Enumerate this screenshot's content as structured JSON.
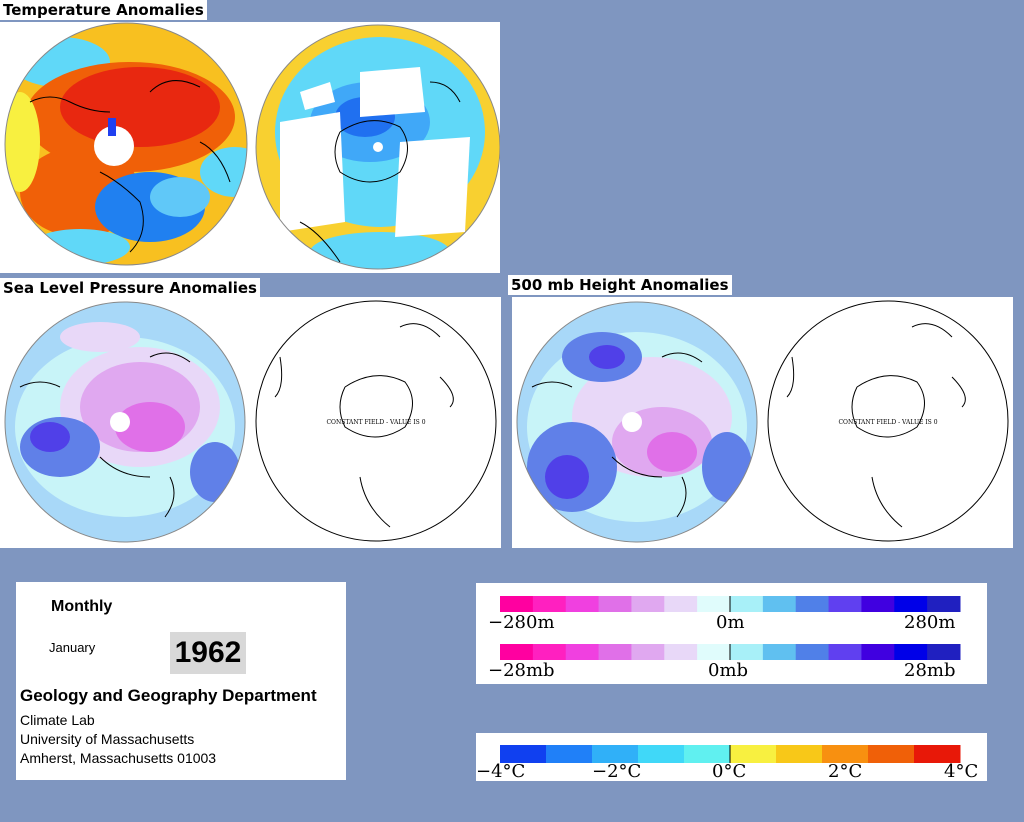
{
  "titles": {
    "temperature": "Temperature Anomalies",
    "slp": "Sea Level Pressure Anomalies",
    "height": "500 mb Height Anomalies"
  },
  "constant_field_note": "CONSTANT FIELD - VALUE IS 0",
  "info": {
    "period": "Monthly",
    "month": "January",
    "year": "1962",
    "department": "Geology and Geography Department",
    "lab": "Climate Lab",
    "university": "University of Massachusetts",
    "address": "Amherst, Massachusetts 01003"
  },
  "legends": {
    "height": {
      "min": "−280m",
      "mid": "0m",
      "max": "280m"
    },
    "pressure": {
      "min": "−28mb",
      "mid": "0mb",
      "max": "28mb"
    },
    "temperature": {
      "t1": "−4°C",
      "t2": "−2°C",
      "t3": "0°C",
      "t4": "2°C",
      "t5": "4°C"
    }
  },
  "colors": {
    "background": "#7f96c0",
    "anomaly_scale_pressure": [
      "#ff00a0",
      "#ff20c0",
      "#f040e0",
      "#e070e8",
      "#e0a8f0",
      "#e8d8f8",
      "#e0fcfc",
      "#a8f0f8",
      "#60c0f0",
      "#5080e8",
      "#6040f0",
      "#4000e0",
      "#0000e8",
      "#2020c0"
    ],
    "temperature_scale": [
      "#1040f0",
      "#2080f8",
      "#30b0f8",
      "#40d8f8",
      "#60f0f0",
      "#f8f040",
      "#f8c818",
      "#f89010",
      "#f06008",
      "#e81808"
    ]
  }
}
